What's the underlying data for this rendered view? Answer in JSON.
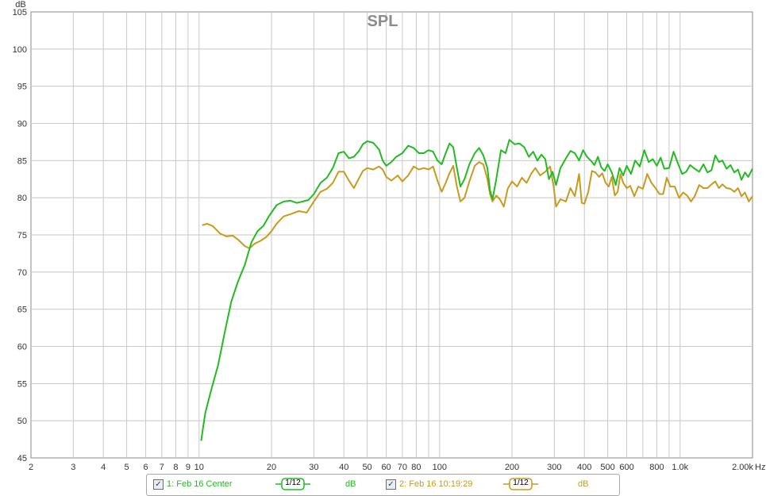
{
  "chart_data": {
    "type": "line",
    "title": "SPL",
    "ylabel": "dB",
    "xlabel_unit": "Hz",
    "x_scale": "log",
    "xlim": [
      2,
      2000
    ],
    "ylim": [
      45,
      105
    ],
    "grid": true,
    "legend_position": "bottom",
    "y_ticks": [
      45,
      50,
      55,
      60,
      65,
      70,
      75,
      80,
      85,
      90,
      95,
      100,
      105
    ],
    "x_ticks": [
      {
        "v": 2,
        "label": "2"
      },
      {
        "v": 3,
        "label": "3"
      },
      {
        "v": 4,
        "label": "4"
      },
      {
        "v": 5,
        "label": "5"
      },
      {
        "v": 6,
        "label": "6"
      },
      {
        "v": 7,
        "label": "7"
      },
      {
        "v": 8,
        "label": "8"
      },
      {
        "v": 9,
        "label": "9"
      },
      {
        "v": 10,
        "label": "10"
      },
      {
        "v": 20,
        "label": "20"
      },
      {
        "v": 30,
        "label": "30"
      },
      {
        "v": 40,
        "label": "40"
      },
      {
        "v": 50,
        "label": "50"
      },
      {
        "v": 60,
        "label": "60"
      },
      {
        "v": 70,
        "label": "70"
      },
      {
        "v": 80,
        "label": "80"
      },
      {
        "v": 100,
        "label": "100"
      },
      {
        "v": 200,
        "label": "200"
      },
      {
        "v": 300,
        "label": "300"
      },
      {
        "v": 400,
        "label": "400"
      },
      {
        "v": 500,
        "label": "500"
      },
      {
        "v": 600,
        "label": "600"
      },
      {
        "v": 800,
        "label": "800"
      },
      {
        "v": 1000,
        "label": "1.0k"
      },
      {
        "v": 2000,
        "label": "2.00k"
      }
    ],
    "series": [
      {
        "name": "1: Feb 16 Center",
        "color": "#22bb22",
        "smoothing": "1/12",
        "unit": "dB",
        "points": [
          [
            10.2,
            47.3
          ],
          [
            10.6,
            51
          ],
          [
            11.2,
            54
          ],
          [
            12,
            57.5
          ],
          [
            12.8,
            62
          ],
          [
            13.6,
            66
          ],
          [
            14.5,
            68.7
          ],
          [
            15.5,
            71
          ],
          [
            16.5,
            74
          ],
          [
            17.5,
            75.5
          ],
          [
            18.5,
            76.2
          ],
          [
            19.5,
            77.5
          ],
          [
            21,
            79
          ],
          [
            22.5,
            79.5
          ],
          [
            24,
            79.6
          ],
          [
            25.5,
            79.3
          ],
          [
            27,
            79.5
          ],
          [
            28.5,
            79.7
          ],
          [
            30,
            80.5
          ],
          [
            32,
            82
          ],
          [
            34,
            82.7
          ],
          [
            36,
            84
          ],
          [
            38,
            86
          ],
          [
            40,
            86.2
          ],
          [
            42,
            85.3
          ],
          [
            44,
            85.5
          ],
          [
            46,
            86.2
          ],
          [
            48,
            87.2
          ],
          [
            50,
            87.6
          ],
          [
            53,
            87.4
          ],
          [
            56,
            86.5
          ],
          [
            58,
            85
          ],
          [
            60,
            84.3
          ],
          [
            63,
            84.8
          ],
          [
            66,
            85.5
          ],
          [
            70,
            86
          ],
          [
            74,
            87
          ],
          [
            78,
            86.7
          ],
          [
            82,
            86
          ],
          [
            86,
            86
          ],
          [
            90,
            86.4
          ],
          [
            94,
            86.2
          ],
          [
            98,
            85
          ],
          [
            102,
            84.5
          ],
          [
            106,
            86
          ],
          [
            110,
            87.3
          ],
          [
            114,
            86.8
          ],
          [
            118,
            84
          ],
          [
            122,
            81.5
          ],
          [
            127,
            82.5
          ],
          [
            133,
            84.5
          ],
          [
            140,
            86
          ],
          [
            146,
            86.7
          ],
          [
            152,
            85.7
          ],
          [
            158,
            84
          ],
          [
            162,
            81
          ],
          [
            166,
            79.8
          ],
          [
            172,
            82.5
          ],
          [
            180,
            86.4
          ],
          [
            188,
            86
          ],
          [
            195,
            87.8
          ],
          [
            205,
            87.2
          ],
          [
            215,
            87.3
          ],
          [
            225,
            86.8
          ],
          [
            235,
            85.5
          ],
          [
            245,
            86.2
          ],
          [
            255,
            85
          ],
          [
            265,
            85.8
          ],
          [
            275,
            85.2
          ],
          [
            285,
            82.5
          ],
          [
            295,
            83.5
          ],
          [
            305,
            81.7
          ],
          [
            318,
            84
          ],
          [
            335,
            85.3
          ],
          [
            350,
            86.3
          ],
          [
            365,
            86
          ],
          [
            380,
            85
          ],
          [
            395,
            86.4
          ],
          [
            410,
            85.5
          ],
          [
            425,
            85
          ],
          [
            440,
            84.4
          ],
          [
            455,
            85.5
          ],
          [
            470,
            84.1
          ],
          [
            485,
            83.6
          ],
          [
            500,
            84.5
          ],
          [
            520,
            83.4
          ],
          [
            540,
            81.7
          ],
          [
            560,
            84
          ],
          [
            580,
            83
          ],
          [
            600,
            84.3
          ],
          [
            625,
            83.2
          ],
          [
            650,
            85
          ],
          [
            680,
            84.2
          ],
          [
            710,
            86.4
          ],
          [
            740,
            84.8
          ],
          [
            770,
            85.2
          ],
          [
            800,
            84.3
          ],
          [
            830,
            85.4
          ],
          [
            860,
            83.9
          ],
          [
            900,
            84
          ],
          [
            940,
            86.2
          ],
          [
            980,
            84.6
          ],
          [
            1020,
            83.2
          ],
          [
            1060,
            83.5
          ],
          [
            1100,
            84.4
          ],
          [
            1150,
            83.9
          ],
          [
            1200,
            83.5
          ],
          [
            1250,
            84.5
          ],
          [
            1300,
            83.4
          ],
          [
            1350,
            83.7
          ],
          [
            1400,
            85.7
          ],
          [
            1450,
            84.8
          ],
          [
            1500,
            85
          ],
          [
            1560,
            83.9
          ],
          [
            1620,
            84.4
          ],
          [
            1680,
            83.4
          ],
          [
            1740,
            83.8
          ],
          [
            1800,
            82.4
          ],
          [
            1860,
            83.4
          ],
          [
            1920,
            82.8
          ],
          [
            2000,
            83.9
          ]
        ]
      },
      {
        "name": "2: Feb 16 10:19:29",
        "color": "#c89a1e",
        "smoothing": "1/12",
        "unit": "dB",
        "points": [
          [
            10.3,
            76.3
          ],
          [
            10.8,
            76.5
          ],
          [
            11.4,
            76.2
          ],
          [
            12.2,
            75.2
          ],
          [
            13,
            74.8
          ],
          [
            13.8,
            74.9
          ],
          [
            14.6,
            74.3
          ],
          [
            15.5,
            73.5
          ],
          [
            16.2,
            73.2
          ],
          [
            17,
            73.8
          ],
          [
            18,
            74.2
          ],
          [
            19,
            74.7
          ],
          [
            20,
            75.5
          ],
          [
            21,
            76.5
          ],
          [
            22.5,
            77.5
          ],
          [
            24,
            77.8
          ],
          [
            26,
            78.2
          ],
          [
            28,
            78
          ],
          [
            30,
            79.5
          ],
          [
            32,
            80.8
          ],
          [
            34,
            81.2
          ],
          [
            36,
            82
          ],
          [
            38,
            83.5
          ],
          [
            40,
            83.5
          ],
          [
            42,
            82.3
          ],
          [
            44,
            81.3
          ],
          [
            46,
            82.5
          ],
          [
            48,
            83.6
          ],
          [
            50,
            84
          ],
          [
            53,
            83.8
          ],
          [
            56,
            84.2
          ],
          [
            58,
            83.8
          ],
          [
            60,
            82.8
          ],
          [
            63,
            82.3
          ],
          [
            67,
            83
          ],
          [
            70,
            82.2
          ],
          [
            74,
            83
          ],
          [
            78,
            84.2
          ],
          [
            82,
            83.8
          ],
          [
            86,
            84
          ],
          [
            90,
            83.8
          ],
          [
            94,
            84.2
          ],
          [
            98,
            82.3
          ],
          [
            102,
            80.8
          ],
          [
            106,
            82
          ],
          [
            110,
            83.3
          ],
          [
            114,
            84.3
          ],
          [
            118,
            81.5
          ],
          [
            122,
            79.5
          ],
          [
            127,
            80
          ],
          [
            133,
            82.2
          ],
          [
            140,
            84.3
          ],
          [
            146,
            84.8
          ],
          [
            152,
            84.5
          ],
          [
            158,
            82.5
          ],
          [
            162,
            80.5
          ],
          [
            166,
            79.5
          ],
          [
            172,
            80.3
          ],
          [
            178,
            79.8
          ],
          [
            185,
            78.8
          ],
          [
            192,
            81.2
          ],
          [
            200,
            82.2
          ],
          [
            210,
            81.5
          ],
          [
            220,
            82.7
          ],
          [
            230,
            82
          ],
          [
            240,
            83.2
          ],
          [
            250,
            84
          ],
          [
            262,
            83
          ],
          [
            275,
            83.5
          ],
          [
            288,
            84.2
          ],
          [
            298,
            81.5
          ],
          [
            305,
            78.8
          ],
          [
            318,
            79.8
          ],
          [
            335,
            79.5
          ],
          [
            350,
            81.3
          ],
          [
            365,
            80.2
          ],
          [
            380,
            83.2
          ],
          [
            390,
            79.3
          ],
          [
            400,
            79.2
          ],
          [
            415,
            80.8
          ],
          [
            430,
            83.6
          ],
          [
            445,
            83.4
          ],
          [
            460,
            82.8
          ],
          [
            475,
            83.3
          ],
          [
            490,
            82
          ],
          [
            505,
            81.5
          ],
          [
            520,
            82.8
          ],
          [
            535,
            80.3
          ],
          [
            550,
            80.8
          ],
          [
            565,
            83.2
          ],
          [
            580,
            82
          ],
          [
            600,
            81.3
          ],
          [
            620,
            81.6
          ],
          [
            645,
            80.2
          ],
          [
            670,
            81.5
          ],
          [
            700,
            81.2
          ],
          [
            730,
            83.2
          ],
          [
            760,
            82
          ],
          [
            790,
            81.3
          ],
          [
            820,
            80.5
          ],
          [
            850,
            80.5
          ],
          [
            880,
            82.7
          ],
          [
            910,
            81.5
          ],
          [
            950,
            81.5
          ],
          [
            990,
            80
          ],
          [
            1030,
            80.7
          ],
          [
            1070,
            80.3
          ],
          [
            1110,
            79.5
          ],
          [
            1150,
            80.2
          ],
          [
            1200,
            81.7
          ],
          [
            1250,
            81.3
          ],
          [
            1300,
            81.3
          ],
          [
            1350,
            81.8
          ],
          [
            1400,
            82.2
          ],
          [
            1450,
            81.3
          ],
          [
            1500,
            81.8
          ],
          [
            1560,
            81.3
          ],
          [
            1620,
            81.2
          ],
          [
            1680,
            80.8
          ],
          [
            1740,
            81.3
          ],
          [
            1800,
            80.2
          ],
          [
            1860,
            80.7
          ],
          [
            1930,
            79.5
          ],
          [
            2000,
            80.2
          ]
        ]
      }
    ]
  },
  "legend": {
    "items": [
      {
        "checked_glyph": "✓",
        "label": "1: Feb 16 Center",
        "smoothing": "1/12",
        "unit": "dB",
        "color": "#22bb22"
      },
      {
        "checked_glyph": "✓",
        "label": "2: Feb 16 10:19:29",
        "smoothing": "1/12",
        "unit": "dB",
        "color": "#c89a1e"
      }
    ]
  }
}
